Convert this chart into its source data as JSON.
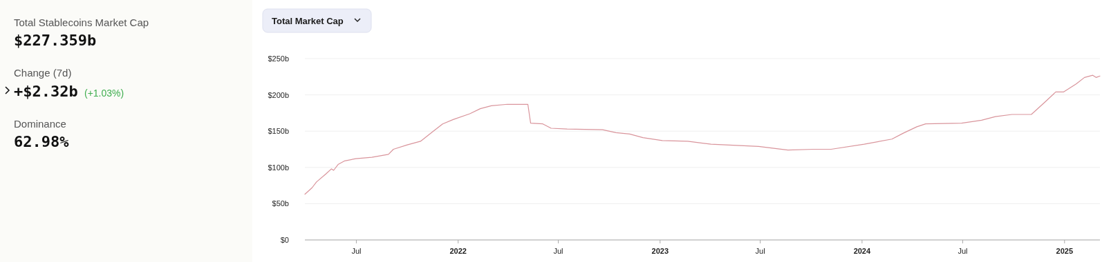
{
  "chart_data": [
    {
      "type": "other",
      "annotations": [
        "Total Stablecoins Market Cap",
        "$227.359b",
        "Change (7d)",
        "+$2.32b",
        "(+1.03%)",
        "Dominance",
        "62.98%"
      ]
    },
    {
      "type": "line",
      "title": "Total Market Cap",
      "series": [
        {
          "color": "#d9949b",
          "x": [
            "2021-03-30",
            "2021-04-12",
            "2021-04-20",
            "2021-05-07",
            "2021-05-17",
            "2021-05-21",
            "2021-05-29",
            "2021-06-10",
            "2021-06-30",
            "2021-07-29",
            "2021-08-28",
            "2021-09-06",
            "2021-10-01",
            "2021-10-25",
            "2021-11-14",
            "2021-12-04",
            "2021-12-23",
            "2022-01-22",
            "2022-02-10",
            "2022-03-02",
            "2022-03-31",
            "2022-05-07",
            "2022-05-12",
            "2022-06-03",
            "2022-06-18",
            "2022-07-17",
            "2022-09-19",
            "2022-10-13",
            "2022-11-07",
            "2022-12-01",
            "2023-01-05",
            "2023-02-20",
            "2023-04-03",
            "2023-06-28",
            "2023-08-20",
            "2023-10-06",
            "2023-11-06",
            "2024-01-05",
            "2024-02-24",
            "2024-03-15",
            "2024-04-09",
            "2024-04-25",
            "2024-06-29",
            "2024-08-04",
            "2024-08-29",
            "2024-09-28",
            "2024-11-02",
            "2024-11-28",
            "2024-12-16",
            "2024-12-30",
            "2025-01-22",
            "2025-02-06",
            "2025-02-21",
            "2025-02-27",
            "2025-03-06"
          ],
          "values": [
            63,
            72,
            80,
            91,
            98,
            96,
            104,
            109,
            112,
            114,
            118,
            125,
            131,
            136,
            148,
            160,
            166,
            174,
            181,
            185,
            187,
            187,
            161,
            160,
            154,
            153,
            152,
            148,
            146,
            141,
            137,
            136,
            132,
            129,
            124,
            125,
            125,
            132,
            139,
            147,
            156,
            160,
            161,
            165,
            170,
            173,
            173,
            191,
            204,
            204,
            215,
            224,
            227,
            224,
            226
          ]
        }
      ],
      "xlim": [
        "2021-03-30",
        "2025-03-06"
      ],
      "xticks": [
        {
          "value": "2021-07-01",
          "label": "Jul"
        },
        {
          "value": "2022-01-01",
          "label": "2022"
        },
        {
          "value": "2022-07-01",
          "label": "Jul"
        },
        {
          "value": "2023-01-01",
          "label": "2023"
        },
        {
          "value": "2023-07-01",
          "label": "Jul"
        },
        {
          "value": "2024-01-01",
          "label": "2024"
        },
        {
          "value": "2024-07-01",
          "label": "Jul"
        },
        {
          "value": "2025-01-01",
          "label": "2025"
        }
      ],
      "ylim": [
        0,
        250
      ],
      "yticks": [
        {
          "value": 0,
          "label": "$0"
        },
        {
          "value": 50,
          "label": "$50b"
        },
        {
          "value": 100,
          "label": "$100b"
        },
        {
          "value": 150,
          "label": "$150b"
        },
        {
          "value": 200,
          "label": "$200b"
        },
        {
          "value": 250,
          "label": "$250b"
        }
      ],
      "grid": "y",
      "marker": "none",
      "line_style": "solid"
    }
  ]
}
